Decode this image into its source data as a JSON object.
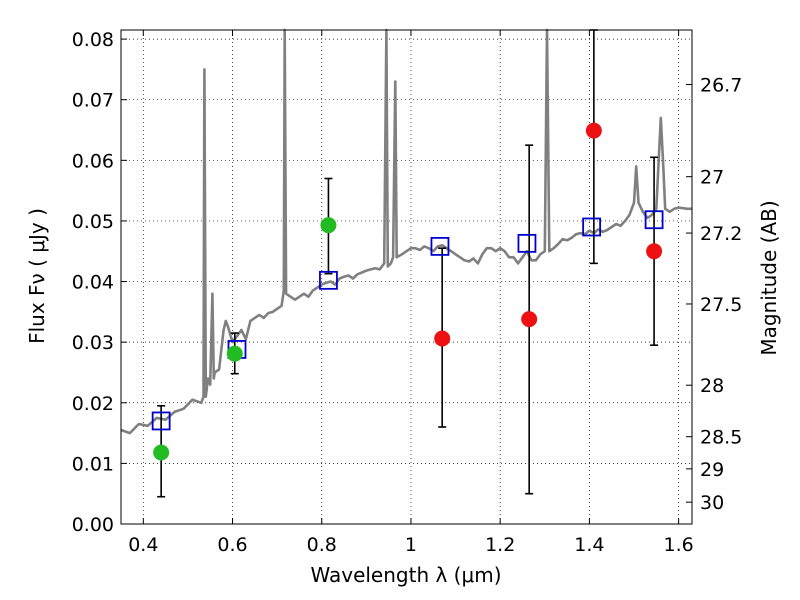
{
  "chart_data": {
    "type": "scatter",
    "title": "",
    "xlabel": "Wavelength  λ (μm)",
    "ylabel": "Flux  Fν  ( μJy )",
    "y2label": "Magnitude (AB)",
    "xlim": [
      0.35,
      1.63
    ],
    "ylim": [
      0.0,
      0.0815
    ],
    "grid": true,
    "x_ticks": [
      0.4,
      0.6,
      0.8,
      1.0,
      1.2,
      1.4,
      1.6
    ],
    "x_tick_labels": [
      "0.4",
      "0.6",
      "0.8",
      "1",
      "1.2",
      "1.4",
      "1.6"
    ],
    "y_ticks": [
      0.0,
      0.01,
      0.02,
      0.03,
      0.04,
      0.05,
      0.06,
      0.07,
      0.08
    ],
    "y_tick_labels": [
      "0.00",
      "0.01",
      "0.02",
      "0.03",
      "0.04",
      "0.05",
      "0.06",
      "0.07",
      "0.08"
    ],
    "mag_ticks": [
      {
        "flux": 0.0725,
        "label": "26.7"
      },
      {
        "flux": 0.0573,
        "label": "27"
      },
      {
        "flux": 0.048,
        "label": "27.2"
      },
      {
        "flux": 0.0363,
        "label": "27.5"
      },
      {
        "flux": 0.0229,
        "label": "28"
      },
      {
        "flux": 0.0144,
        "label": "28.5"
      },
      {
        "flux": 0.0091,
        "label": "29"
      },
      {
        "flux": 0.0036,
        "label": "30"
      }
    ],
    "series": [
      {
        "kind": "line",
        "color": "#808080",
        "points": [
          [
            0.35,
            0.0155
          ],
          [
            0.37,
            0.015
          ],
          [
            0.39,
            0.0165
          ],
          [
            0.41,
            0.0162
          ],
          [
            0.43,
            0.0175
          ],
          [
            0.45,
            0.0172
          ],
          [
            0.47,
            0.0185
          ],
          [
            0.49,
            0.019
          ],
          [
            0.51,
            0.0205
          ],
          [
            0.53,
            0.02
          ],
          [
            0.535,
            0.021
          ],
          [
            0.537,
            0.075
          ],
          [
            0.54,
            0.021
          ],
          [
            0.545,
            0.024
          ],
          [
            0.55,
            0.023
          ],
          [
            0.555,
            0.038
          ],
          [
            0.558,
            0.024
          ],
          [
            0.56,
            0.025
          ],
          [
            0.57,
            0.0255
          ],
          [
            0.58,
            0.032
          ],
          [
            0.585,
            0.0335
          ],
          [
            0.59,
            0.0325
          ],
          [
            0.6,
            0.03
          ],
          [
            0.61,
            0.031
          ],
          [
            0.62,
            0.032
          ],
          [
            0.63,
            0.0305
          ],
          [
            0.64,
            0.0335
          ],
          [
            0.65,
            0.034
          ],
          [
            0.66,
            0.0345
          ],
          [
            0.67,
            0.034
          ],
          [
            0.68,
            0.0348
          ],
          [
            0.69,
            0.035
          ],
          [
            0.7,
            0.0355
          ],
          [
            0.71,
            0.036
          ],
          [
            0.715,
            0.0385
          ],
          [
            0.717,
            0.0815
          ],
          [
            0.72,
            0.038
          ],
          [
            0.73,
            0.0375
          ],
          [
            0.74,
            0.037
          ],
          [
            0.75,
            0.0375
          ],
          [
            0.76,
            0.038
          ],
          [
            0.77,
            0.0375
          ],
          [
            0.78,
            0.0385
          ],
          [
            0.79,
            0.039
          ],
          [
            0.8,
            0.0395
          ],
          [
            0.81,
            0.0398
          ],
          [
            0.82,
            0.04
          ],
          [
            0.83,
            0.0395
          ],
          [
            0.84,
            0.0405
          ],
          [
            0.85,
            0.0408
          ],
          [
            0.86,
            0.041
          ],
          [
            0.87,
            0.0405
          ],
          [
            0.88,
            0.0412
          ],
          [
            0.89,
            0.0415
          ],
          [
            0.9,
            0.0418
          ],
          [
            0.91,
            0.042
          ],
          [
            0.92,
            0.0422
          ],
          [
            0.93,
            0.042
          ],
          [
            0.94,
            0.043
          ],
          [
            0.945,
            0.0815
          ],
          [
            0.948,
            0.0425
          ],
          [
            0.955,
            0.043
          ],
          [
            0.96,
            0.044
          ],
          [
            0.965,
            0.073
          ],
          [
            0.968,
            0.044
          ],
          [
            0.98,
            0.0445
          ],
          [
            0.99,
            0.045
          ],
          [
            1.0,
            0.0455
          ],
          [
            1.01,
            0.0455
          ],
          [
            1.02,
            0.0452
          ],
          [
            1.03,
            0.0458
          ],
          [
            1.04,
            0.0455
          ],
          [
            1.05,
            0.045
          ],
          [
            1.06,
            0.0458
          ],
          [
            1.07,
            0.046
          ],
          [
            1.08,
            0.0455
          ],
          [
            1.09,
            0.045
          ],
          [
            1.1,
            0.0445
          ],
          [
            1.11,
            0.044
          ],
          [
            1.12,
            0.0435
          ],
          [
            1.13,
            0.0433
          ],
          [
            1.14,
            0.0438
          ],
          [
            1.15,
            0.043
          ],
          [
            1.16,
            0.0445
          ],
          [
            1.17,
            0.0455
          ],
          [
            1.18,
            0.0455
          ],
          [
            1.19,
            0.045
          ],
          [
            1.2,
            0.0455
          ],
          [
            1.21,
            0.045
          ],
          [
            1.22,
            0.044
          ],
          [
            1.23,
            0.044
          ],
          [
            1.24,
            0.043
          ],
          [
            1.25,
            0.044
          ],
          [
            1.26,
            0.045
          ],
          [
            1.27,
            0.0435
          ],
          [
            1.28,
            0.0435
          ],
          [
            1.29,
            0.0445
          ],
          [
            1.3,
            0.045
          ],
          [
            1.305,
            0.0815
          ],
          [
            1.31,
            0.045
          ],
          [
            1.32,
            0.0455
          ],
          [
            1.33,
            0.0462
          ],
          [
            1.34,
            0.047
          ],
          [
            1.35,
            0.0468
          ],
          [
            1.36,
            0.0472
          ],
          [
            1.37,
            0.0478
          ],
          [
            1.38,
            0.048
          ],
          [
            1.39,
            0.0478
          ],
          [
            1.4,
            0.0484
          ],
          [
            1.41,
            0.048
          ],
          [
            1.42,
            0.0486
          ],
          [
            1.43,
            0.0482
          ],
          [
            1.44,
            0.0485
          ],
          [
            1.45,
            0.049
          ],
          [
            1.46,
            0.0495
          ],
          [
            1.47,
            0.0492
          ],
          [
            1.48,
            0.05
          ],
          [
            1.49,
            0.051
          ],
          [
            1.5,
            0.053
          ],
          [
            1.505,
            0.059
          ],
          [
            1.51,
            0.053
          ],
          [
            1.52,
            0.0515
          ],
          [
            1.53,
            0.0505
          ],
          [
            1.54,
            0.051
          ],
          [
            1.55,
            0.052
          ],
          [
            1.56,
            0.067
          ],
          [
            1.565,
            0.06
          ],
          [
            1.57,
            0.052
          ],
          [
            1.58,
            0.0515
          ],
          [
            1.59,
            0.052
          ],
          [
            1.6,
            0.0522
          ],
          [
            1.62,
            0.052
          ],
          [
            1.63,
            0.052
          ]
        ]
      },
      {
        "kind": "open-square",
        "color": "#0000cc",
        "points": [
          [
            0.44,
            0.017
          ],
          [
            0.61,
            0.0288
          ],
          [
            0.815,
            0.0402
          ],
          [
            1.065,
            0.0458
          ],
          [
            1.26,
            0.0463
          ],
          [
            1.405,
            0.049
          ],
          [
            1.545,
            0.0502
          ]
        ]
      },
      {
        "kind": "filled-circle",
        "color": "#22bb22",
        "points": [
          [
            0.44,
            0.0118
          ],
          [
            0.605,
            0.0281
          ],
          [
            0.815,
            0.0493
          ]
        ]
      },
      {
        "kind": "filled-circle",
        "color": "#ee1111",
        "points": [
          [
            1.07,
            0.0306
          ],
          [
            1.265,
            0.0338
          ],
          [
            1.41,
            0.0649
          ],
          [
            1.545,
            0.045
          ]
        ]
      },
      {
        "kind": "errorbar",
        "color": "#000000",
        "bars": [
          [
            0.44,
            0.0045,
            0.0195
          ],
          [
            0.605,
            0.0248,
            0.0315
          ],
          [
            0.815,
            0.0413,
            0.057
          ],
          [
            1.07,
            0.016,
            0.0455
          ],
          [
            1.265,
            0.005,
            0.0625
          ],
          [
            1.41,
            0.043,
            0.0815
          ],
          [
            1.545,
            0.0295,
            0.0605
          ]
        ]
      }
    ]
  }
}
